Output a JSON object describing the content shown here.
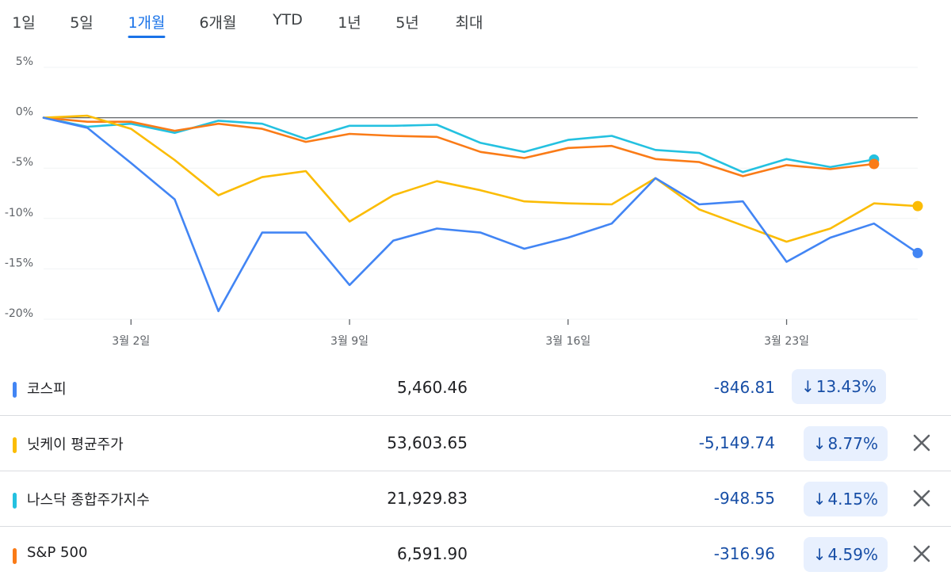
{
  "tabs": [
    {
      "label": "1일",
      "active": false
    },
    {
      "label": "5일",
      "active": false
    },
    {
      "label": "1개월",
      "active": true
    },
    {
      "label": "6개월",
      "active": false
    },
    {
      "label": "YTD",
      "active": false
    },
    {
      "label": "1년",
      "active": false
    },
    {
      "label": "5년",
      "active": false
    },
    {
      "label": "최대",
      "active": false
    }
  ],
  "chart_data": {
    "type": "line",
    "ylim": [
      -20,
      5
    ],
    "yticks": [
      5,
      0,
      -5,
      -10,
      -15,
      -20
    ],
    "ytick_labels": [
      "5%",
      "0%",
      "-5%",
      "-10%",
      "-15%",
      "-20%"
    ],
    "xticks": [
      {
        "label": "3월 2일",
        "index": 2
      },
      {
        "label": "3월 9일",
        "index": 7
      },
      {
        "label": "3월 16일",
        "index": 12
      },
      {
        "label": "3월 23일",
        "index": 17
      }
    ],
    "x_count": 21,
    "grid": true,
    "series": [
      {
        "name": "나스닥 종합주가지수",
        "color": "#24c1e0",
        "values": [
          0,
          -0.9,
          -0.6,
          -1.5,
          -0.3,
          -0.6,
          -2.1,
          -0.8,
          -0.8,
          -0.7,
          -2.5,
          -3.4,
          -2.2,
          -1.8,
          -3.2,
          -3.5,
          -5.4,
          -4.1,
          -4.9,
          -4.15
        ]
      },
      {
        "name": "S&P 500",
        "color": "#fa7b17",
        "values": [
          0,
          -0.4,
          -0.4,
          -1.3,
          -0.6,
          -1.1,
          -2.4,
          -1.6,
          -1.8,
          -1.9,
          -3.4,
          -4.0,
          -3.0,
          -2.8,
          -4.1,
          -4.4,
          -5.8,
          -4.7,
          -5.1,
          -4.59
        ]
      },
      {
        "name": "닛케이 평균주가",
        "color": "#fbbc04",
        "values": [
          0,
          0.2,
          -1.1,
          -4.2,
          -7.7,
          -5.9,
          -5.3,
          -10.3,
          -7.7,
          -6.3,
          -7.2,
          -8.3,
          -8.5,
          -8.6,
          -6.0,
          -9.1,
          -10.7,
          -12.3,
          -11.0,
          -8.5,
          -8.77
        ]
      },
      {
        "name": "코스피",
        "color": "#4285f4",
        "values": [
          0,
          -1.0,
          -4.5,
          -8.1,
          -19.2,
          -11.4,
          -11.4,
          -16.6,
          -12.2,
          -11.0,
          -11.4,
          -13.0,
          -11.9,
          -10.5,
          -6.0,
          -8.6,
          -8.3,
          -14.3,
          -11.9,
          -10.5,
          -13.43
        ]
      }
    ]
  },
  "rows": [
    {
      "name": "코스피",
      "color": "#4285f4",
      "price": "5,460.46",
      "change": "-846.81",
      "arrow": "↓",
      "pct": "13.43%",
      "closable": false
    },
    {
      "name": "닛케이 평균주가",
      "color": "#fbbc04",
      "price": "53,603.65",
      "change": "-5,149.74",
      "arrow": "↓",
      "pct": "8.77%",
      "closable": true
    },
    {
      "name": "나스닥 종합주가지수",
      "color": "#24c1e0",
      "price": "21,929.83",
      "change": "-948.55",
      "arrow": "↓",
      "pct": "4.15%",
      "closable": true
    },
    {
      "name": "S&P 500",
      "color": "#fa7b17",
      "price": "6,591.90",
      "change": "-316.96",
      "arrow": "↓",
      "pct": "4.59%",
      "closable": true
    }
  ]
}
